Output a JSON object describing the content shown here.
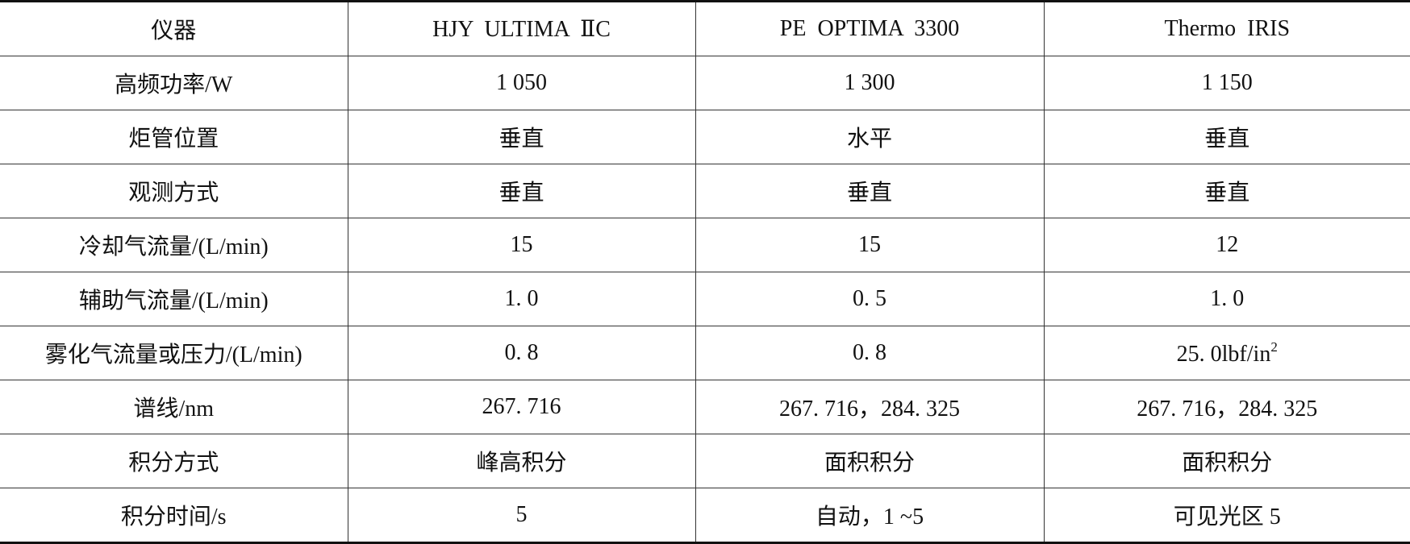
{
  "table": {
    "header": [
      "仪器",
      "HJY  ULTIMA  ⅡC",
      "PE  OPTIMA  3300",
      "Thermo  IRIS"
    ],
    "rows": [
      [
        "高频功率/W",
        "1 050",
        "1 300",
        "1 150"
      ],
      [
        "炬管位置",
        "垂直",
        "水平",
        "垂直"
      ],
      [
        "观测方式",
        "垂直",
        "垂直",
        "垂直"
      ],
      [
        "冷却气流量/(L/min)",
        "15",
        "15",
        "12"
      ],
      [
        "辅助气流量/(L/min)",
        "1. 0",
        "0. 5",
        "1. 0"
      ],
      [
        "雾化气流量或压力/(L/min)",
        "0. 8",
        "0. 8",
        {
          "text": "25. 0lbf/in",
          "sup": "2"
        }
      ],
      [
        "谱线/nm",
        "267. 716",
        "267. 716，284. 325",
        "267. 716，284. 325"
      ],
      [
        "积分方式",
        "峰高积分",
        "面积积分",
        "面积积分"
      ],
      [
        "积分时间/s",
        "5",
        "自动，1 ~5",
        "可见光区 5"
      ]
    ]
  }
}
